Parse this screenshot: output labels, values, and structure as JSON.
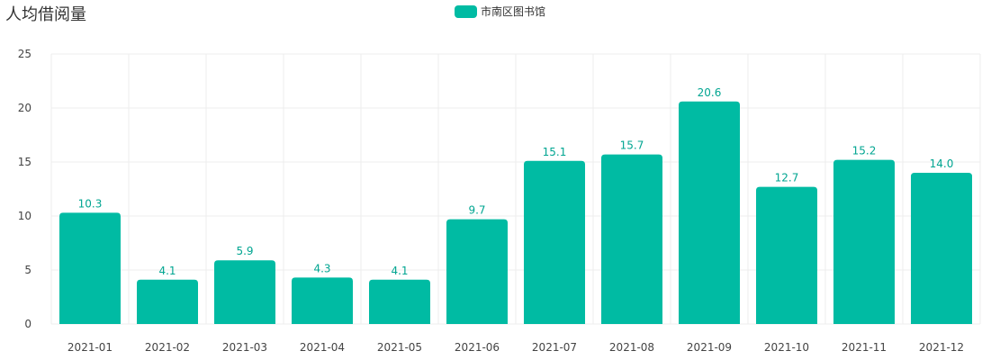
{
  "chart_data": {
    "type": "bar",
    "title": "人均借阅量",
    "categories": [
      "2021-01",
      "2021-02",
      "2021-03",
      "2021-04",
      "2021-05",
      "2021-06",
      "2021-07",
      "2021-08",
      "2021-09",
      "2021-10",
      "2021-11",
      "2021-12"
    ],
    "series": [
      {
        "name": "市南区图书馆",
        "values": [
          10.3,
          4.1,
          5.9,
          4.3,
          4.1,
          9.7,
          15.1,
          15.7,
          20.6,
          12.7,
          15.2,
          14.0
        ],
        "labels": [
          "10.3",
          "4.1",
          "5.9",
          "4.3",
          "4.1",
          "9.7",
          "15.1",
          "15.7",
          "20.6",
          "12.7",
          "15.2",
          "14.0"
        ]
      }
    ],
    "ylim": [
      0,
      25
    ],
    "yticks": [
      0,
      5,
      10,
      15,
      20,
      25
    ],
    "xlabel": "",
    "ylabel": "",
    "grid": true,
    "legend_position": "top-center",
    "colors": {
      "bar": "#00bba3",
      "label": "#00a591",
      "grid": "#eeeeee",
      "axis_text": "#444444"
    }
  }
}
